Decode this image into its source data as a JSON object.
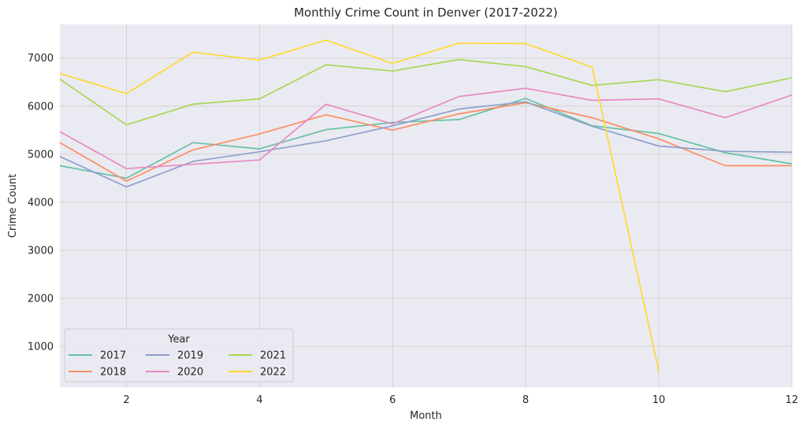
{
  "chart_data": {
    "type": "line",
    "title": "Monthly Crime Count in Denver (2017-2022)",
    "xlabel": "Month",
    "ylabel": "Crime Count",
    "xlim": [
      1,
      12
    ],
    "ylim": [
      150,
      7700
    ],
    "xticks": [
      2,
      4,
      6,
      8,
      10,
      12
    ],
    "yticks": [
      1000,
      2000,
      3000,
      4000,
      5000,
      6000,
      7000
    ],
    "grid": true,
    "legend": {
      "title": "Year",
      "placement": "lower-left",
      "columns": 3
    },
    "series": [
      {
        "name": "2017",
        "color": "#66c2a5",
        "x": [
          1,
          2,
          3,
          4,
          5,
          6,
          7,
          8,
          9,
          10,
          11,
          12
        ],
        "values": [
          4760,
          4500,
          5240,
          5110,
          5510,
          5660,
          5720,
          6160,
          5590,
          5430,
          5030,
          4800
        ]
      },
      {
        "name": "2018",
        "color": "#fc8d62",
        "x": [
          1,
          2,
          3,
          4,
          5,
          6,
          7,
          8,
          9,
          10,
          11,
          12
        ],
        "values": [
          5240,
          4440,
          5090,
          5420,
          5820,
          5500,
          5840,
          6070,
          5760,
          5320,
          4760,
          4760
        ]
      },
      {
        "name": "2019",
        "color": "#8da0cb",
        "x": [
          1,
          2,
          3,
          4,
          5,
          6,
          7,
          8,
          9,
          10,
          11,
          12
        ],
        "values": [
          4950,
          4320,
          4850,
          5050,
          5280,
          5590,
          5940,
          6090,
          5580,
          5170,
          5060,
          5040
        ]
      },
      {
        "name": "2020",
        "color": "#e78ac3",
        "x": [
          1,
          2,
          3,
          4,
          5,
          6,
          7,
          8,
          9,
          10,
          11,
          12
        ],
        "values": [
          5470,
          4700,
          4790,
          4880,
          6040,
          5630,
          6200,
          6370,
          6120,
          6150,
          5760,
          6230
        ]
      },
      {
        "name": "2021",
        "color": "#a6d854",
        "x": [
          1,
          2,
          3,
          4,
          5,
          6,
          7,
          8,
          9,
          10,
          11,
          12
        ],
        "values": [
          6560,
          5610,
          6040,
          6150,
          6860,
          6730,
          6970,
          6820,
          6430,
          6550,
          6300,
          6590
        ]
      },
      {
        "name": "2022",
        "color": "#ffd92f",
        "x": [
          1,
          2,
          3,
          4,
          5,
          6,
          7,
          8,
          9,
          10
        ],
        "values": [
          6680,
          6260,
          7120,
          6960,
          7370,
          6890,
          7310,
          7300,
          6810,
          490
        ]
      }
    ]
  }
}
